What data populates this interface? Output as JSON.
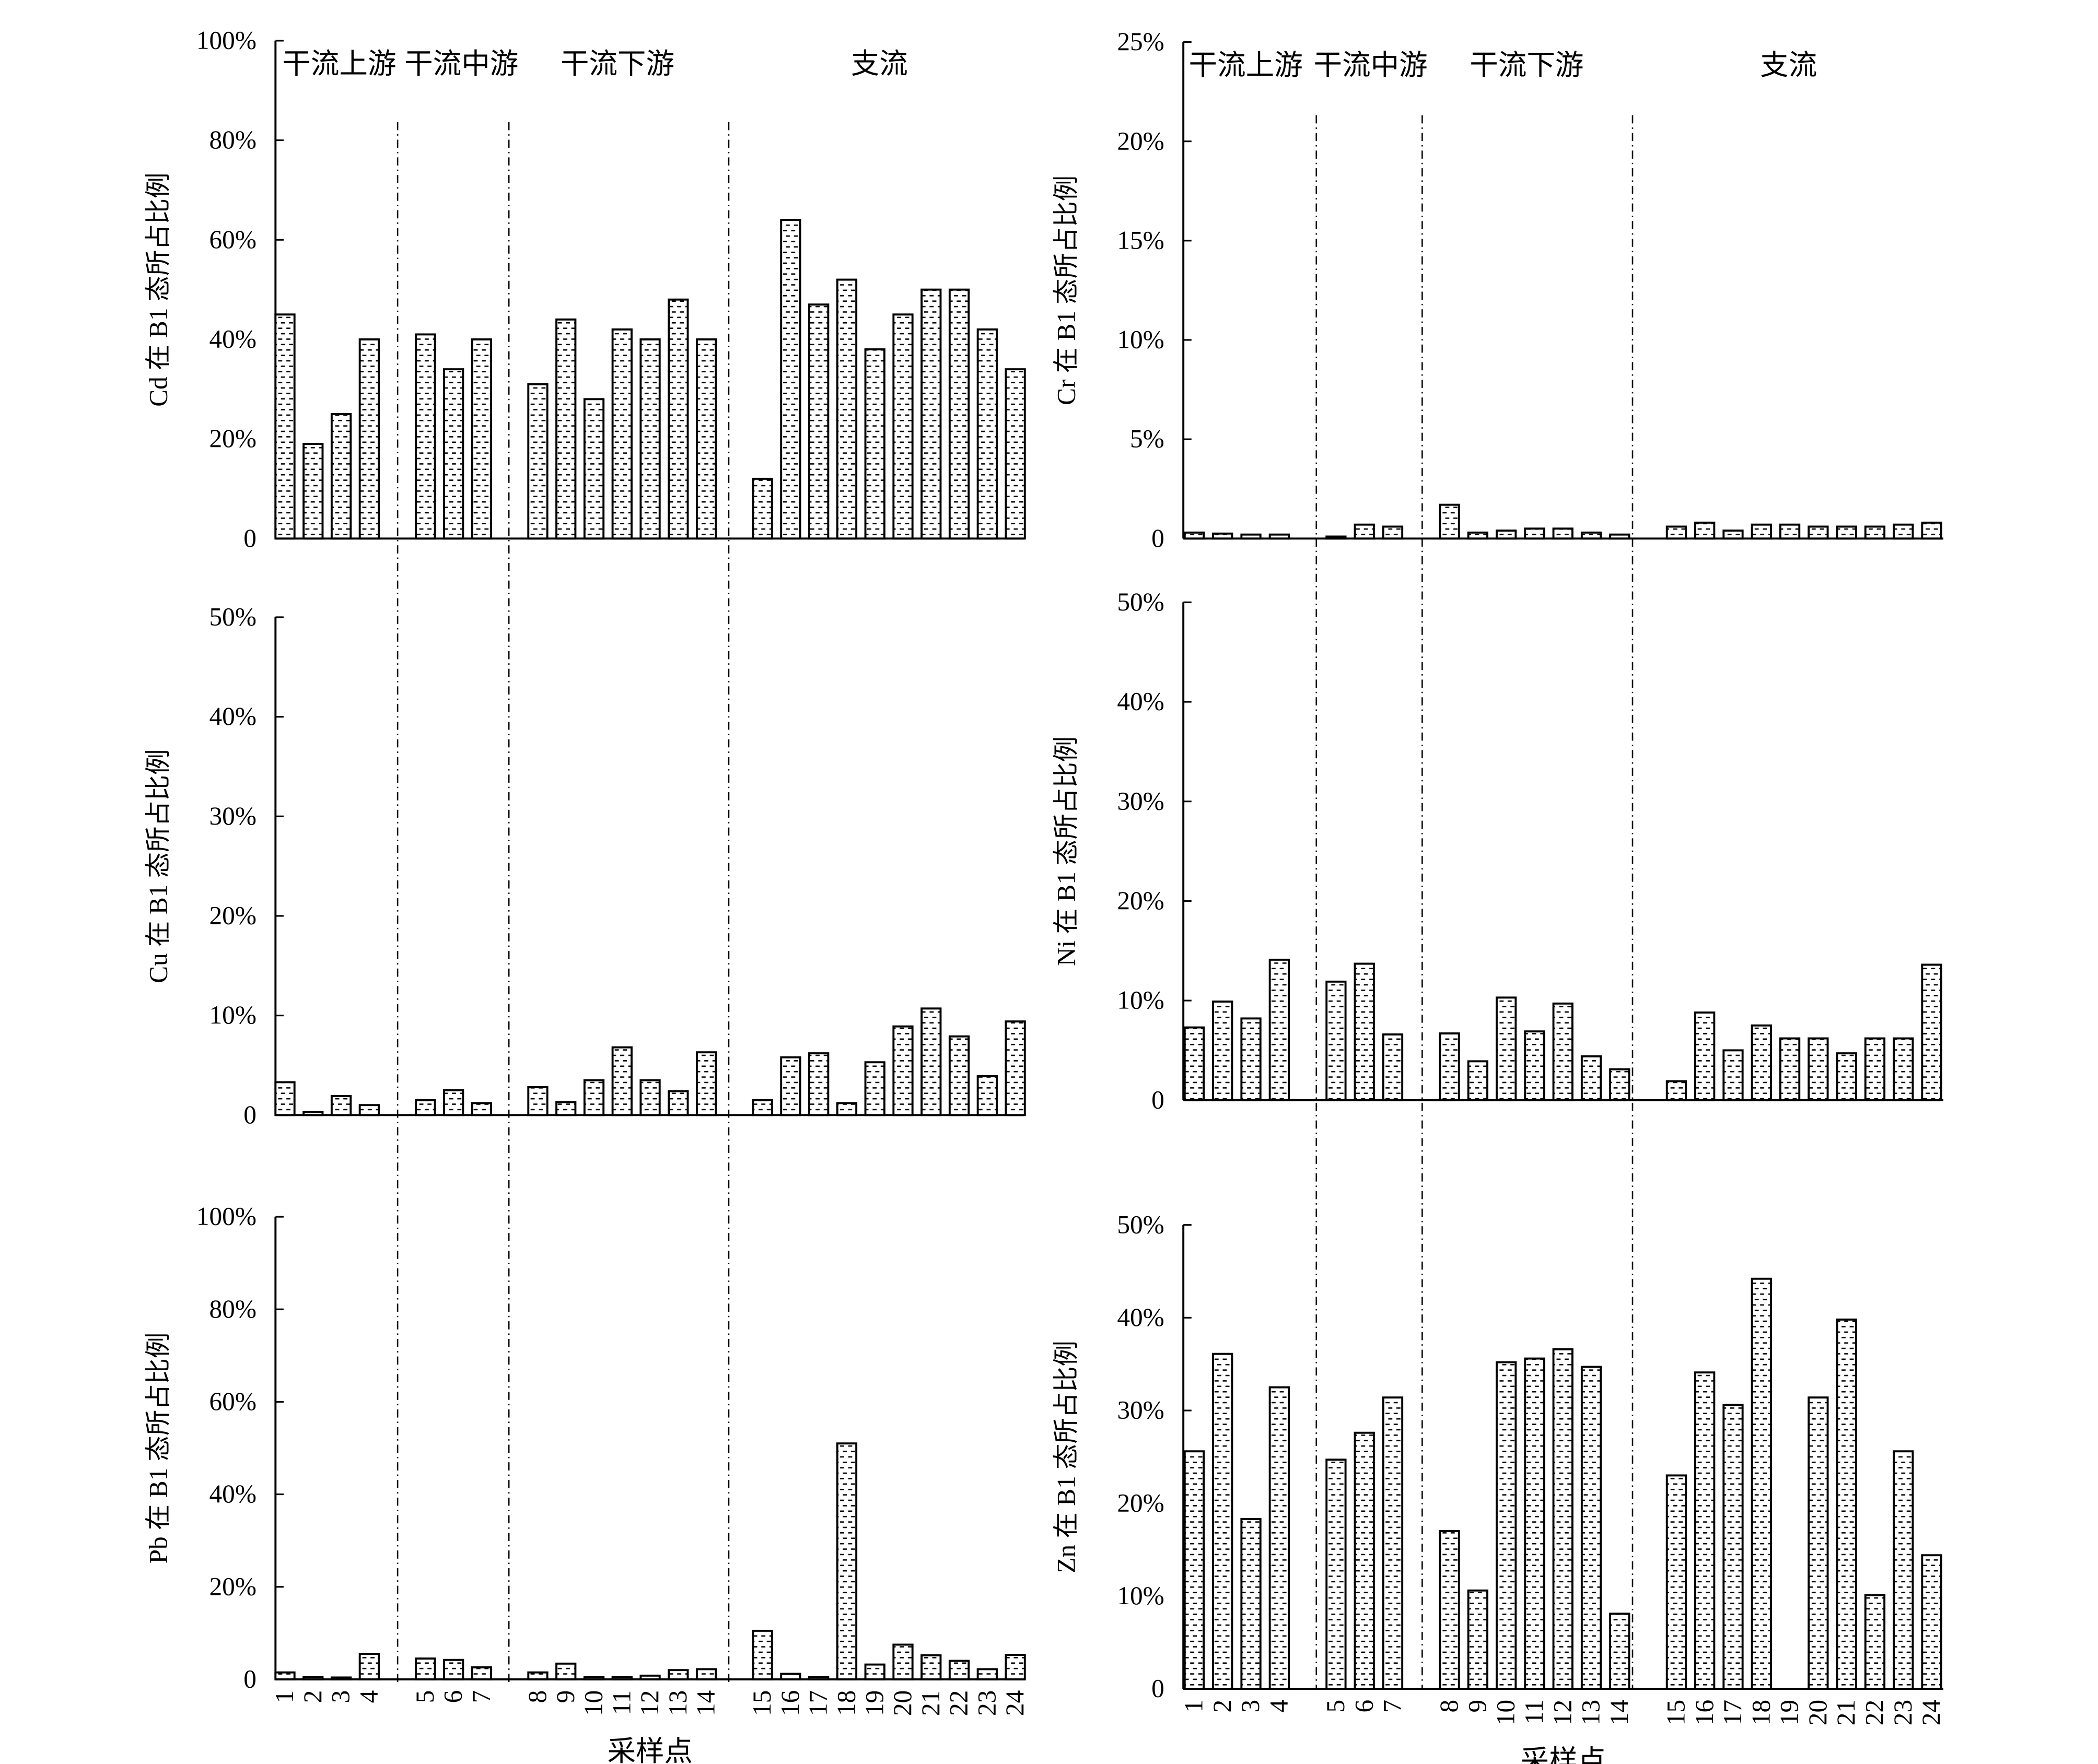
{
  "chart_data": [
    {
      "type": "bar",
      "ylabel": "Cd 在 B1 态所占比例",
      "sections": [
        "干流上游",
        "干流中游",
        "干流下游",
        "支流"
      ],
      "values": [
        45,
        19,
        25,
        40,
        41,
        34,
        40,
        31,
        44,
        28,
        42,
        40,
        48,
        40,
        12,
        64,
        47,
        52,
        38,
        45,
        50,
        50,
        42,
        34
      ],
      "ylim": [
        0,
        100
      ],
      "yticks": [
        0,
        {
          "value": 20,
          "label": "20%"
        },
        {
          "value": 40,
          "label": "40%"
        },
        {
          "value": 60,
          "label": "60%"
        },
        {
          "value": 80,
          "label": "80%"
        },
        {
          "value": 100,
          "label": "100%"
        }
      ]
    },
    {
      "type": "bar",
      "ylabel": "Cr 在 B1 态所占比例",
      "sections": [
        "干流上游",
        "干流中游",
        "干流下游",
        "支流"
      ],
      "values": [
        0.3,
        0.25,
        0.2,
        0.2,
        0.1,
        0.7,
        0.6,
        1.7,
        0.3,
        0.4,
        0.5,
        0.5,
        0.3,
        0.2,
        0.6,
        0.8,
        0.4,
        0.7,
        0.7,
        0.6,
        0.6,
        0.6,
        0.7,
        0.8
      ],
      "ylim": [
        0,
        25
      ],
      "yticks": [
        0,
        {
          "value": 5,
          "label": "5%"
        },
        {
          "value": 10,
          "label": "10%"
        },
        {
          "value": 15,
          "label": "15%"
        },
        {
          "value": 20,
          "label": "20%"
        },
        {
          "value": 25,
          "label": "25%"
        }
      ]
    },
    {
      "type": "bar",
      "ylabel": "Cu 在 B1 态所占比例",
      "values": [
        3.3,
        0.3,
        1.9,
        1,
        1.5,
        2.5,
        1.2,
        2.8,
        1.3,
        3.5,
        6.8,
        3.5,
        2.4,
        6.3,
        1.5,
        5.8,
        6.2,
        1.2,
        5.3,
        8.9,
        10.7,
        7.9,
        3.9,
        9.4
      ],
      "ylim": [
        0,
        50
      ],
      "yticks": [
        0,
        {
          "value": 10,
          "label": "10%"
        },
        {
          "value": 20,
          "label": "20%"
        },
        {
          "value": 30,
          "label": "30%"
        },
        {
          "value": 40,
          "label": "40%"
        },
        {
          "value": 50,
          "label": "50%"
        }
      ]
    },
    {
      "type": "bar",
      "ylabel": "Ni 在 B1 态所占比例",
      "values": [
        7.3,
        9.9,
        8.2,
        14.1,
        11.9,
        13.7,
        6.6,
        6.7,
        3.9,
        10.3,
        6.9,
        9.7,
        4.4,
        3.1,
        1.9,
        8.8,
        5,
        7.5,
        6.2,
        6.2,
        4.7,
        6.2,
        6.2,
        13.6
      ],
      "ylim": [
        0,
        50
      ],
      "yticks": [
        0,
        {
          "value": 10,
          "label": "10%"
        },
        {
          "value": 20,
          "label": "20%"
        },
        {
          "value": 30,
          "label": "30%"
        },
        {
          "value": 40,
          "label": "40%"
        },
        {
          "value": 50,
          "label": "50%"
        }
      ]
    },
    {
      "type": "bar",
      "ylabel": "Pb 在 B1 态所占比例",
      "xlabel": "采样点",
      "categories": [
        "1",
        "2",
        "3",
        "4",
        "5",
        "6",
        "7",
        "8",
        "9",
        "10",
        "11",
        "12",
        "13",
        "14",
        "15",
        "16",
        "17",
        "18",
        "19",
        "20",
        "21",
        "22",
        "23",
        "24"
      ],
      "values": [
        1.5,
        0.5,
        0.4,
        5.5,
        4.5,
        4.2,
        2.6,
        1.5,
        3.4,
        0.5,
        0.5,
        0.8,
        2,
        2.2,
        10.5,
        1.2,
        0.5,
        51,
        3.2,
        7.5,
        5.2,
        4,
        2.2,
        5.3
      ],
      "ylim": [
        0,
        100
      ],
      "yticks": [
        0,
        {
          "value": 20,
          "label": "20%"
        },
        {
          "value": 40,
          "label": "40%"
        },
        {
          "value": 60,
          "label": "60%"
        },
        {
          "value": 80,
          "label": "80%"
        },
        {
          "value": 100,
          "label": "100%"
        }
      ]
    },
    {
      "type": "bar",
      "ylabel": "Zn 在 B1 态所占比例",
      "xlabel": "采样点",
      "categories": [
        "1",
        "2",
        "3",
        "4",
        "5",
        "6",
        "7",
        "8",
        "9",
        "10",
        "11",
        "12",
        "13",
        "14",
        "15",
        "16",
        "17",
        "18",
        "19",
        "20",
        "21",
        "22",
        "23",
        "24"
      ],
      "values": [
        25.6,
        36.1,
        18.3,
        32.5,
        24.7,
        27.6,
        31.4,
        17,
        10.6,
        35.2,
        35.6,
        36.6,
        34.7,
        8.1,
        23,
        34.1,
        30.6,
        44.2,
        null,
        31.4,
        39.8,
        10.1,
        25.6,
        14.4
      ],
      "ylim": [
        0,
        50
      ],
      "yticks": [
        0,
        {
          "value": 10,
          "label": "10%"
        },
        {
          "value": 20,
          "label": "20%"
        },
        {
          "value": 30,
          "label": "30%"
        },
        {
          "value": 40,
          "label": "40%"
        },
        {
          "value": 50,
          "label": "50%"
        }
      ]
    }
  ]
}
